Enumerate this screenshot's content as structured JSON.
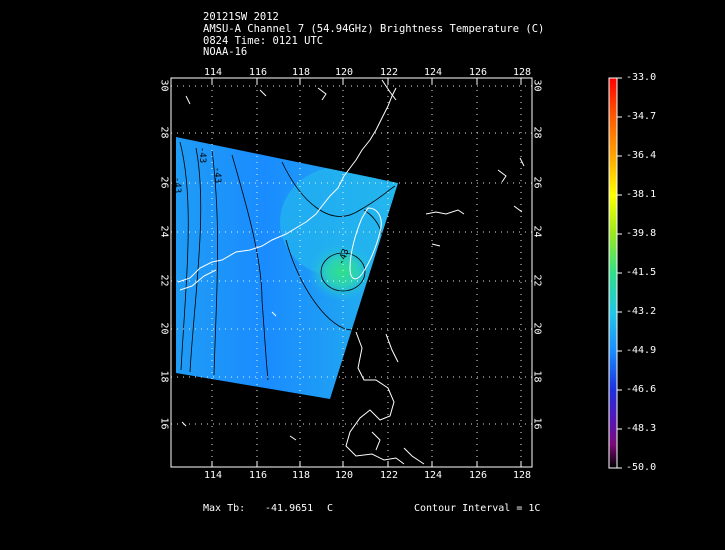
{
  "header": {
    "line1": "20121SW 2012",
    "line2": "AMSU-A Channel 7 (54.94GHz) Brightness Temperature (C)",
    "line3": "0824 Time: 0121 UTC",
    "line4": "NOAA-16"
  },
  "map": {
    "lon_ticks": [
      "114",
      "116",
      "118",
      "120",
      "122",
      "124",
      "126",
      "128"
    ],
    "lat_ticks": [
      "30",
      "28",
      "26",
      "24",
      "22",
      "20",
      "18",
      "16"
    ],
    "contour_labels": [
      "-43",
      "-43",
      "-43",
      "-43"
    ]
  },
  "colorbar": {
    "labels": [
      "-33.0",
      "-34.7",
      "-36.4",
      "-38.1",
      "-39.8",
      "-41.5",
      "-43.2",
      "-44.9",
      "-46.6",
      "-48.3",
      "-50.0"
    ]
  },
  "footer": {
    "max_tb_label": "Max Tb:",
    "max_tb_value": "-41.9651",
    "max_tb_unit": "C",
    "contour_interval": "Contour Interval = 1C"
  },
  "colors": {
    "swath_blue": "#1a8cff",
    "swath_cyan": "#22b4f0",
    "max_green": "#2fe08a"
  }
}
